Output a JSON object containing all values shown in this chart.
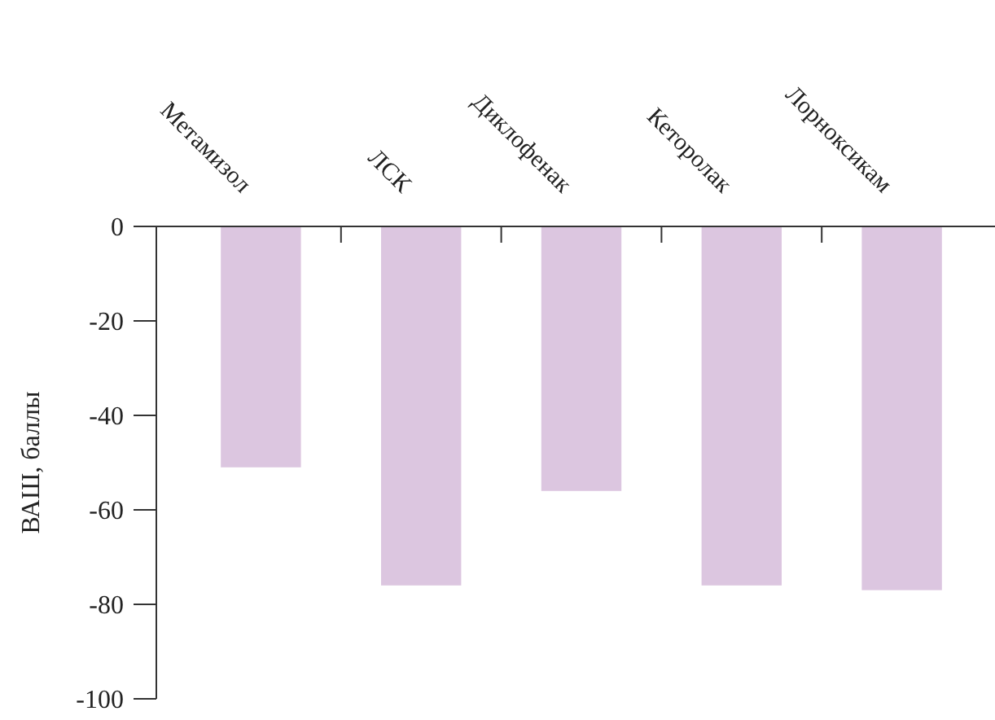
{
  "chart_data": {
    "type": "bar",
    "ylabel": "ВАШ, баллы",
    "categories": [
      "Метамизол",
      "ЛСК",
      "Диклофенак",
      "Кеторолак",
      "Лорноксикам"
    ],
    "series": [
      {
        "color": "#dcc6e0",
        "values": [
          -51,
          -76,
          -56,
          -76,
          -77
        ]
      }
    ],
    "ylim": [
      -100,
      0
    ],
    "yticks": [
      -100,
      -80,
      -60,
      -40,
      -20,
      0
    ],
    "grid": false
  }
}
